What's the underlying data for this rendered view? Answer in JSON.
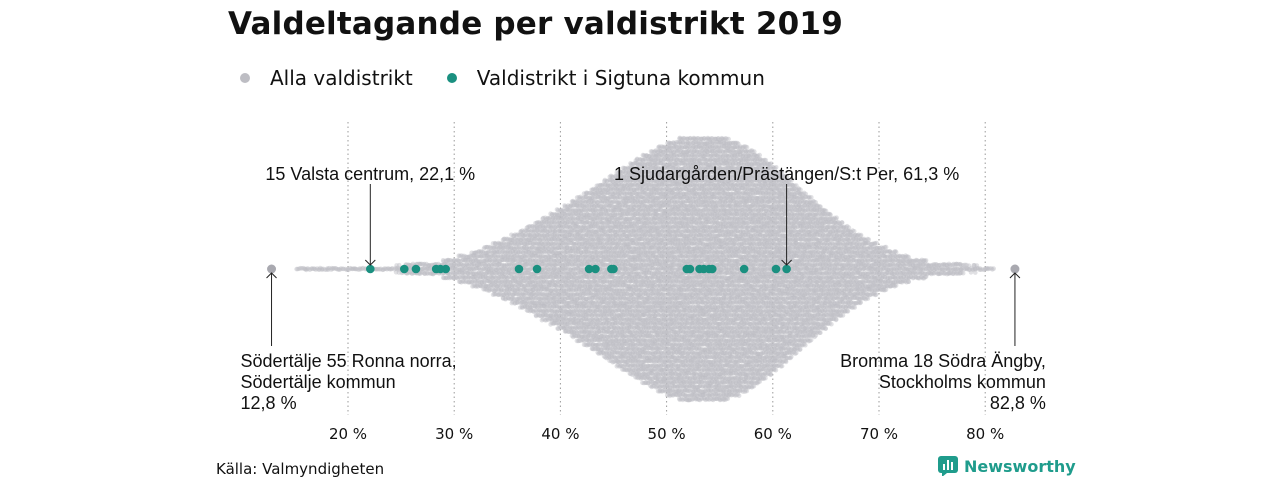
{
  "chart_data": {
    "type": "scatter",
    "title": "Valdeltagande per valdistrikt 2019",
    "xlabel": "",
    "ylabel": "",
    "xlim": [
      10,
      86
    ],
    "x_ticks": [
      "20 %",
      "30 %",
      "40 %",
      "50 %",
      "60 %",
      "70 %",
      "80 %"
    ],
    "x_tick_values": [
      20,
      30,
      40,
      50,
      60,
      70,
      80
    ],
    "grid": "vertical dotted",
    "legend_placement": "top-left",
    "series": [
      {
        "name": "Alla valdistrikt",
        "color": "#bdbdc3",
        "distribution": "beeswarm of all election districts; densest around 53–54 %",
        "min": 12.8,
        "max": 82.8
      },
      {
        "name": "Valdistrikt i Sigtuna kommun",
        "color": "#1a9080",
        "values": [
          22.1,
          25.3,
          26.4,
          28.3,
          28.7,
          29.2,
          36.1,
          37.8,
          42.7,
          43.3,
          44.8,
          45.0,
          51.9,
          52.2,
          53.1,
          53.5,
          54.0,
          54.3,
          57.3,
          60.3,
          61.3
        ]
      }
    ],
    "annotations": [
      {
        "x": 22.1,
        "lines": [
          "15 Valsta centrum, 22,1 %"
        ],
        "position": "above"
      },
      {
        "x": 61.3,
        "lines": [
          "1 Sjudargården/Prästängen/S:t Per, 61,3 %"
        ],
        "position": "above"
      },
      {
        "x": 12.8,
        "lines": [
          "Södertälje 55 Ronna norra,",
          "Södertälje kommun",
          "12,8 %"
        ],
        "position": "below",
        "align": "left"
      },
      {
        "x": 82.8,
        "lines": [
          "Bromma 18 Södra Ängby,",
          "Stockholms kommun",
          "82,8 %"
        ],
        "position": "below",
        "align": "right"
      }
    ]
  },
  "footer": {
    "source": "Källa: Valmyndigheten",
    "brand": "Newsworthy"
  },
  "colors": {
    "all": "#bdbdc3",
    "sigtuna": "#1a9080",
    "grid": "#9a9a9a",
    "brand": "#1f9c8c"
  }
}
